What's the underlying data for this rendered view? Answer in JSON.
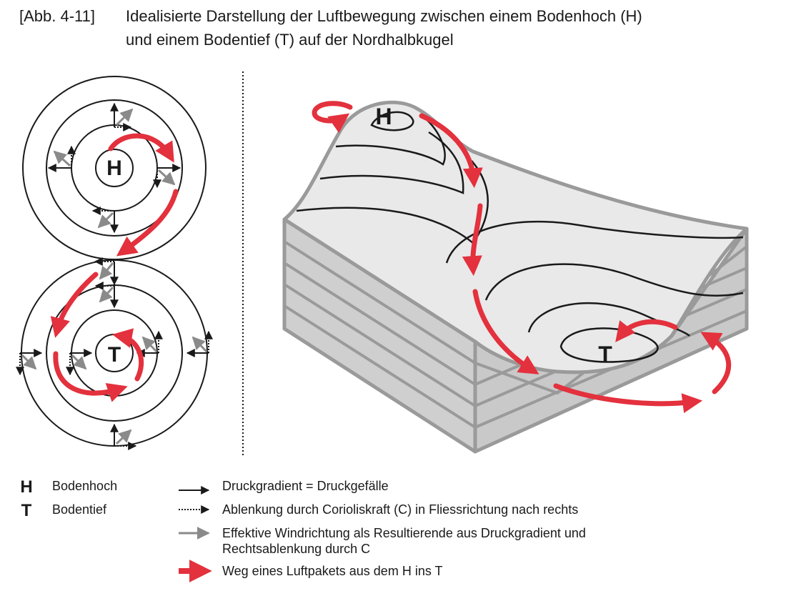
{
  "caption": {
    "number": "[Abb. 4-11]",
    "line1": "Idealisierte Darstellung der Luftbewegung zwischen einem Bodenhoch (H)",
    "line2": "und einem Bodentief (T) auf der Nordhalbkugel"
  },
  "symbols": {
    "high": "H",
    "low": "T"
  },
  "legend": {
    "high_label": "Bodenhoch",
    "low_label": "Bodentief",
    "gradient": "Druckgradient = Druckgefälle",
    "coriolis": "Ablenkung durch Corioliskraft (C) in Fliessrichtung nach rechts",
    "effective_line1": "Effektive Windrichtung als Resultierende aus Druckgradient und",
    "effective_line2": "Rechtsablenkung durch C",
    "path": "Weg eines Luftpakets aus dem H ins T"
  },
  "colors": {
    "path_red": "#e3313d",
    "effective_gray": "#8a8a8a",
    "black": "#1a1a1a",
    "surface": "#e9e9e9",
    "side_face": "#cfcfcf",
    "edge_gray": "#9a9a9a"
  }
}
